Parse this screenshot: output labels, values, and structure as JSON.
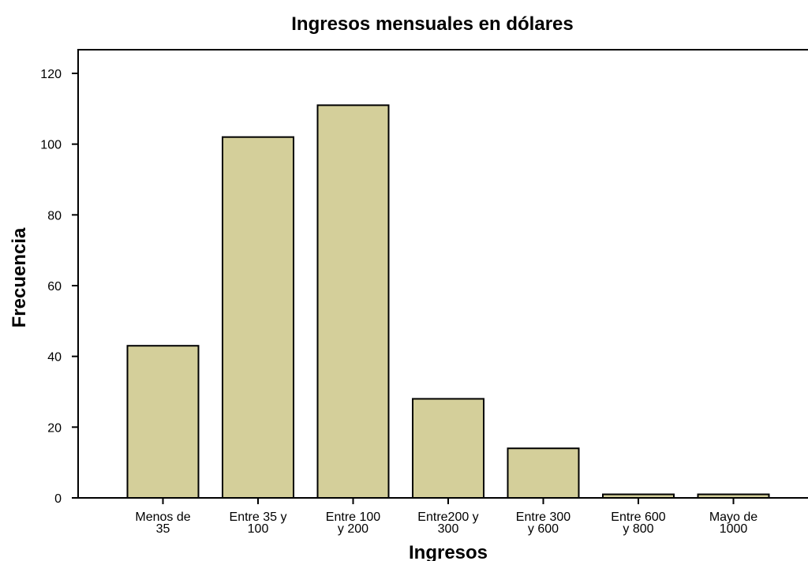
{
  "chart_data": {
    "type": "bar",
    "title": "Ingresos mensuales en dólares",
    "xlabel": "Ingresos",
    "ylabel": "Frecuencia",
    "categories": [
      [
        "Menos de",
        "35"
      ],
      [
        "Entre 35 y",
        "100"
      ],
      [
        "Entre 100",
        "y 200"
      ],
      [
        "Entre200 y",
        "300"
      ],
      [
        "Entre 300",
        "y 600"
      ],
      [
        "Entre 600",
        "y 800"
      ],
      [
        "Mayo de",
        "1000"
      ]
    ],
    "values": [
      43,
      102,
      111,
      28,
      14,
      1,
      1
    ],
    "yticks": [
      0,
      20,
      40,
      60,
      80,
      100,
      120
    ],
    "ylim": [
      0,
      120
    ],
    "grid": false,
    "legend": "none",
    "bar_color": "#d4cf9a",
    "bar_stroke": "#000000"
  }
}
